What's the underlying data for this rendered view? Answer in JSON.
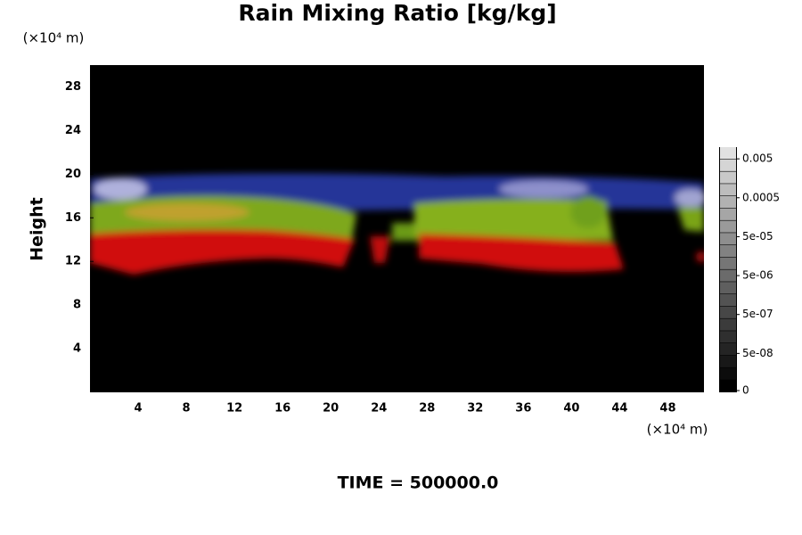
{
  "chart_data": {
    "type": "field",
    "title": "Rain Mixing Ratio [kg/kg]",
    "y_label": "Height",
    "y_unit": "(×10⁴ m)",
    "x_unit": "(×10⁴ m)",
    "time_label": "TIME = 500000.0",
    "xlim": [
      0,
      51
    ],
    "xticks": [
      4,
      8,
      12,
      16,
      20,
      24,
      28,
      32,
      36,
      40,
      44,
      48
    ],
    "ylim": [
      0,
      30
    ],
    "yticks": [
      4,
      8,
      12,
      16,
      20,
      24,
      28
    ],
    "grid": false,
    "colorbar": {
      "scale": "log",
      "lim": [
        5e-09,
        0.01
      ],
      "ticks": [
        0,
        {
          "value": 5e-08,
          "label": "5e-08"
        },
        {
          "value": 5e-07,
          "label": "5e-07"
        },
        {
          "value": 5e-06,
          "label": "5e-06"
        },
        {
          "value": 5e-05,
          "label": "5e-05"
        },
        0.0005,
        0.005
      ]
    }
  }
}
